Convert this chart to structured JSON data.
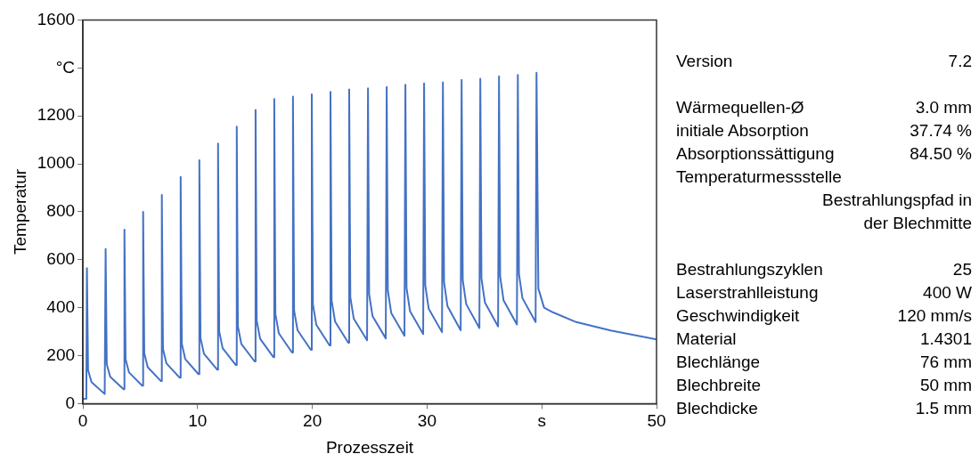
{
  "chart_data": {
    "type": "line",
    "xlabel": "Prozesszeit",
    "ylabel": "Temperatur",
    "xlim": [
      0,
      50
    ],
    "ylim": [
      0,
      1600
    ],
    "xticks": [
      0,
      10,
      20,
      30,
      {
        "value": 40,
        "label": "s"
      },
      50
    ],
    "yticks": [
      0,
      200,
      400,
      600,
      800,
      1000,
      1200,
      {
        "value": 1400,
        "label": "°C"
      },
      1600
    ],
    "grid": false,
    "legend": false,
    "marker": "none",
    "line_style": "solid",
    "series": [
      {
        "color": "#4472c4",
        "x": [
          0,
          0.3,
          0.35,
          0.45,
          0.75,
          1.9,
          1.93,
          1.98,
          2.08,
          2.38,
          3.54,
          3.57,
          3.62,
          3.72,
          4.02,
          5.17,
          5.2,
          5.25,
          5.35,
          5.65,
          6.8,
          6.83,
          6.88,
          6.98,
          7.28,
          8.44,
          8.47,
          8.52,
          8.62,
          8.92,
          10.07,
          10.1,
          10.15,
          10.25,
          10.55,
          11.7,
          11.73,
          11.78,
          11.88,
          12.18,
          13.33,
          13.36,
          13.41,
          13.51,
          13.81,
          14.97,
          15.0,
          15.05,
          15.15,
          15.45,
          16.6,
          16.63,
          16.68,
          16.78,
          17.08,
          18.23,
          18.26,
          18.31,
          18.41,
          18.71,
          19.87,
          19.9,
          19.95,
          20.05,
          20.35,
          21.5,
          21.53,
          21.58,
          21.68,
          21.98,
          23.13,
          23.16,
          23.21,
          23.31,
          23.61,
          24.77,
          24.8,
          24.85,
          24.95,
          25.25,
          26.4,
          26.43,
          26.48,
          26.58,
          26.88,
          28.03,
          28.06,
          28.11,
          28.21,
          28.51,
          29.66,
          29.69,
          29.74,
          29.84,
          30.14,
          31.3,
          31.33,
          31.38,
          31.48,
          31.78,
          32.93,
          32.96,
          33.01,
          33.11,
          33.41,
          34.56,
          34.59,
          34.64,
          34.74,
          35.04,
          36.19,
          36.22,
          36.27,
          36.37,
          36.67,
          37.83,
          37.86,
          37.91,
          38.01,
          38.31,
          39.46,
          39.49,
          39.54,
          39.7,
          40.2,
          41,
          43,
          46,
          50
        ],
        "values": [
          20,
          20,
          565,
          140,
          90,
          40,
          40,
          645,
          164,
          112,
          60,
          60,
          725,
          185,
          130,
          75,
          75,
          800,
          210,
          152,
          94,
          94,
          870,
          228,
          168,
          108,
          108,
          945,
          249,
          186,
          123,
          123,
          1015,
          274,
          208,
          142,
          142,
          1085,
          301,
          231,
          161,
          161,
          1155,
          322,
          249,
          176,
          176,
          1225,
          346,
          270,
          194,
          194,
          1270,
          373,
          293,
          213,
          213,
          1280,
          388,
          306,
          224,
          224,
          1290,
          413,
          328,
          243,
          243,
          1300,
          430,
          342,
          254,
          254,
          1310,
          444,
          354,
          264,
          264,
          1315,
          456,
          364,
          272,
          272,
          1320,
          471,
          377,
          283,
          283,
          1330,
          482,
          386,
          290,
          290,
          1335,
          494,
          396,
          298,
          298,
          1340,
          506,
          406,
          306,
          306,
          1350,
          515,
          415,
          315,
          315,
          1355,
          522,
          422,
          322,
          322,
          1365,
          530,
          430,
          330,
          330,
          1370,
          540,
          440,
          340,
          340,
          1380,
          480,
          400,
          380,
          340,
          305,
          268
        ]
      }
    ],
    "annotations": [
      "Version\t7.2",
      "Wärmequellen-Ø\t3.0 mm",
      "initiale Absorption\t37.74 %",
      "Absorptionssättigung\t84.50 %",
      "Temperaturmessstelle\tBestrahlungspfad in der Blechmitte",
      "Bestrahlungszyklen\t25",
      "Laserstrahlleistung\t400 W",
      "Geschwindigkeit\t120 mm/s",
      "Material\t1.4301",
      "Blechlänge\t76 mm",
      "Blechbreite\t50 mm",
      "Blechdicke\t1.5 mm"
    ]
  }
}
